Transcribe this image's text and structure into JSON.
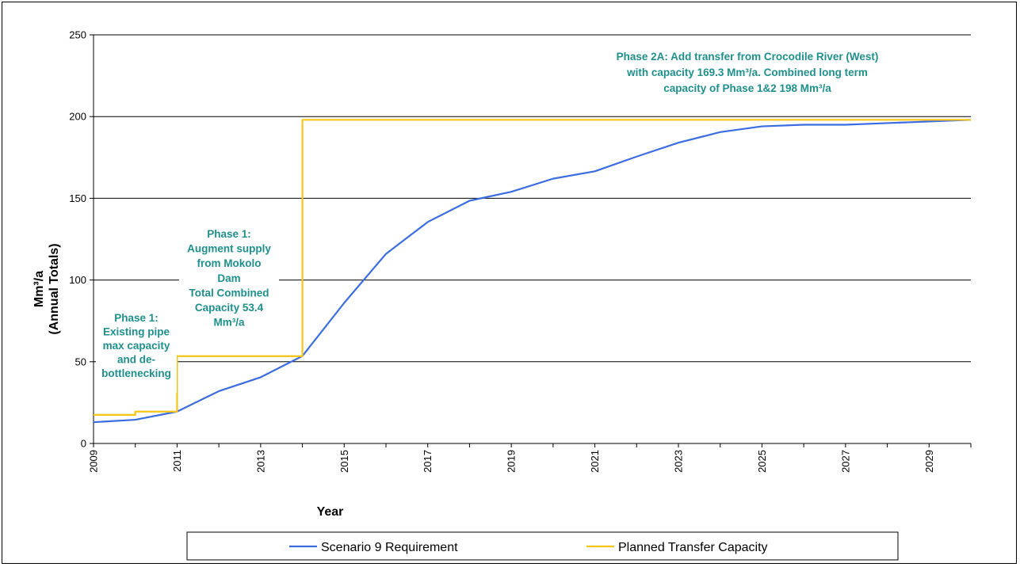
{
  "chart_data": {
    "type": "line",
    "xlabel": "Year",
    "ylabel_lines": [
      "Mm³/a",
      "(Annual Totals)"
    ],
    "xlim": [
      2009,
      2030
    ],
    "ylim": [
      0,
      250
    ],
    "yticks": [
      0,
      50,
      100,
      150,
      200,
      250
    ],
    "xticks": [
      2009,
      2011,
      2013,
      2015,
      2017,
      2019,
      2021,
      2023,
      2025,
      2027,
      2029
    ],
    "grid": "horizontal",
    "legend_position": "bottom",
    "series": [
      {
        "name": "Scenario 9 Requirement",
        "color": "#3b6de0",
        "style": "line",
        "x": [
          2009,
          2010,
          2011,
          2012,
          2013,
          2014,
          2015,
          2016,
          2017,
          2018,
          2019,
          2020,
          2021,
          2022,
          2023,
          2024,
          2025,
          2026,
          2027,
          2028,
          2029,
          2030
        ],
        "y": [
          13,
          14.5,
          19.5,
          32,
          40.5,
          53.5,
          86,
          116,
          135.5,
          148.5,
          154,
          162,
          166.5,
          175.5,
          184,
          190.5,
          194,
          195,
          195,
          196,
          197,
          198
        ]
      },
      {
        "name": "Planned Transfer Capacity",
        "color": "#f5c518",
        "style": "step",
        "x": [
          2009,
          2010,
          2010,
          2011,
          2011,
          2014,
          2014,
          2030
        ],
        "y": [
          17.5,
          17.5,
          19.5,
          19.5,
          53.4,
          53.4,
          198,
          198
        ]
      }
    ],
    "annotations": [
      {
        "id": "phase1-existing",
        "lines": [
          "Phase 1:",
          "Existing pipe",
          "max capacity",
          "and de-",
          "bottlenecking"
        ]
      },
      {
        "id": "phase1-mokolo",
        "lines": [
          "Phase 1:",
          "Augment supply",
          "from Mokolo",
          "Dam",
          "Total Combined",
          "Capacity 53.4",
          "Mm³/a"
        ]
      },
      {
        "id": "phase2a",
        "lines": [
          "Phase 2A: Add transfer from Crocodile River (West)",
          "with capacity  169.3 Mm³/a.  Combined long term",
          "capacity of Phase 1&2 198 Mm³/a"
        ]
      }
    ]
  }
}
